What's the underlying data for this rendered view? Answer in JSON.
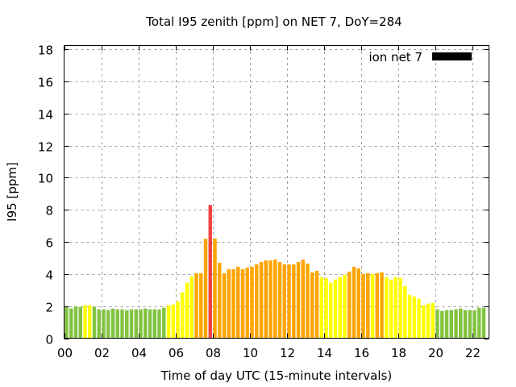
{
  "chart_data": {
    "type": "bar",
    "title": "Total I95 zenith [ppm] on NET 7, DoY=284",
    "xlabel": "Time of day UTC (15-minute intervals)",
    "ylabel": "I95 [ppm]",
    "ylim": [
      0,
      18
    ],
    "xlim_hours": [
      0,
      22.9
    ],
    "grid": true,
    "legend": {
      "label": "ion net 7",
      "color": "#000000",
      "position": "top-right"
    },
    "y_ticks": [
      "0",
      "2",
      "4",
      "6",
      "8",
      "10",
      "12",
      "14",
      "16",
      "18"
    ],
    "y_tick_values": [
      0,
      2,
      4,
      6,
      8,
      10,
      12,
      14,
      16,
      18
    ],
    "x_ticks": [
      "00",
      "02",
      "04",
      "06",
      "08",
      "10",
      "12",
      "14",
      "16",
      "18",
      "20",
      "22"
    ],
    "x_tick_hours": [
      0,
      2,
      4,
      6,
      8,
      10,
      12,
      14,
      16,
      18,
      20,
      22
    ],
    "interval_hours": 0.25,
    "colors": {
      "g": "#82c341",
      "y": "#ffff00",
      "o": "#ffa500",
      "r": "#ef4444"
    },
    "values": [
      1.95,
      1.85,
      1.98,
      1.95,
      2.05,
      2.05,
      1.95,
      1.8,
      1.8,
      1.75,
      1.85,
      1.8,
      1.8,
      1.75,
      1.8,
      1.8,
      1.8,
      1.85,
      1.8,
      1.8,
      1.8,
      1.9,
      2.05,
      2.1,
      2.3,
      2.85,
      3.45,
      3.85,
      4.05,
      4.05,
      6.2,
      8.3,
      6.2,
      4.7,
      4.05,
      4.3,
      4.3,
      4.45,
      4.3,
      4.4,
      4.45,
      4.6,
      4.75,
      4.85,
      4.85,
      4.9,
      4.75,
      4.6,
      4.6,
      4.6,
      4.75,
      4.9,
      4.65,
      4.1,
      4.2,
      3.8,
      3.75,
      3.45,
      3.65,
      3.8,
      3.95,
      4.15,
      4.45,
      4.35,
      4.0,
      4.05,
      4.0,
      4.05,
      4.1,
      3.8,
      3.65,
      3.8,
      3.75,
      3.25,
      2.7,
      2.6,
      2.45,
      2.05,
      2.15,
      2.2,
      1.8,
      1.7,
      1.75,
      1.75,
      1.8,
      1.85,
      1.75,
      1.75,
      1.75,
      1.9,
      1.9,
      1.85
    ],
    "color_class": [
      "g",
      "g",
      "g",
      "g",
      "y",
      "y",
      "g",
      "g",
      "g",
      "g",
      "g",
      "g",
      "g",
      "g",
      "g",
      "g",
      "g",
      "g",
      "g",
      "g",
      "g",
      "g",
      "y",
      "y",
      "y",
      "y",
      "y",
      "y",
      "o",
      "o",
      "o",
      "r",
      "o",
      "o",
      "o",
      "o",
      "o",
      "o",
      "o",
      "o",
      "o",
      "o",
      "o",
      "o",
      "o",
      "o",
      "o",
      "o",
      "o",
      "o",
      "o",
      "o",
      "o",
      "o",
      "o",
      "y",
      "y",
      "y",
      "y",
      "y",
      "y",
      "o",
      "o",
      "o",
      "o",
      "o",
      "y",
      "o",
      "o",
      "y",
      "y",
      "y",
      "y",
      "y",
      "y",
      "y",
      "y",
      "y",
      "y",
      "y",
      "g",
      "g",
      "g",
      "g",
      "g",
      "g",
      "g",
      "g",
      "g",
      "g",
      "g",
      "g"
    ]
  }
}
